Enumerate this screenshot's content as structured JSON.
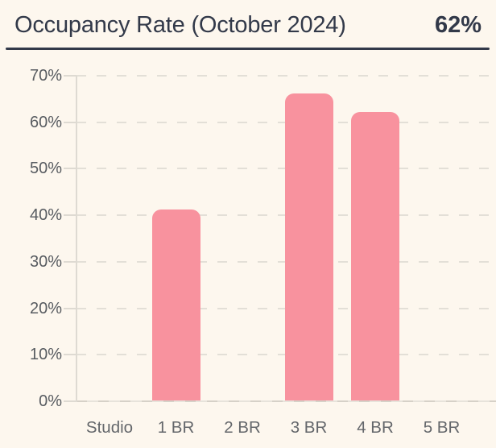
{
  "header": {
    "title": "Occupancy Rate (October 2024)",
    "value": "62%"
  },
  "colors": {
    "background": "#FDF7EE",
    "ink": "#323949",
    "bar": "#F8929E",
    "grid": "#E3DFD7",
    "axis": "#DEDAD2",
    "baseline": "#E7E3DB",
    "baseline_dash": "#D6D1C8",
    "y_label": "#585C61",
    "x_label": "#64676B"
  },
  "chart_data": {
    "type": "bar",
    "title": "Occupancy Rate (October 2024)",
    "headline_value": "62%",
    "categories": [
      "Studio",
      "1 BR",
      "2 BR",
      "3 BR",
      "4 BR",
      "5 BR"
    ],
    "values": [
      0,
      41,
      0,
      66,
      62,
      0
    ],
    "unit": "%",
    "xlabel": "",
    "ylabel": "",
    "ylim": [
      0,
      70
    ],
    "ytick_step": 10,
    "ytick_suffix": "%",
    "grid": "horizontal-dashed",
    "legend": "none",
    "bar_corner": "rounded-top"
  }
}
